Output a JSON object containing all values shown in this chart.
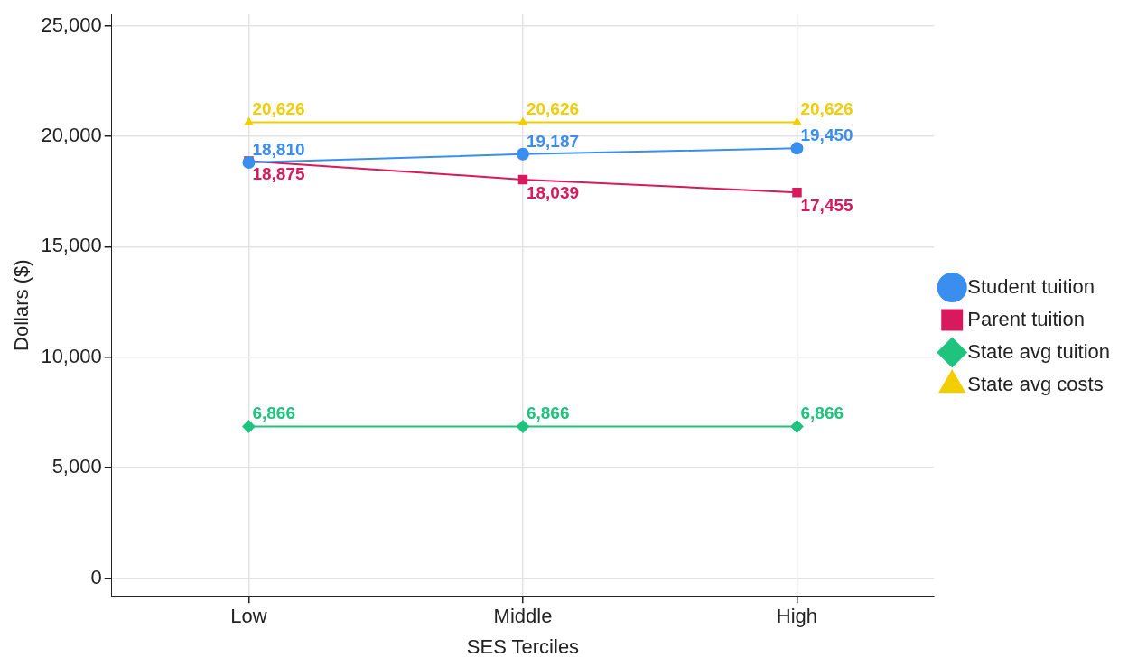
{
  "chart_data": {
    "type": "line",
    "xlabel": "SES Terciles",
    "ylabel": "Dollars ($)",
    "categories": [
      "Low",
      "Middle",
      "High"
    ],
    "series": [
      {
        "name": "Student tuition",
        "color": "#3a8ef0",
        "values": [
          18810,
          19187,
          19450
        ],
        "value_labels": [
          "18,810",
          "19,187",
          "19,450"
        ],
        "marker": "circle"
      },
      {
        "name": "Parent tuition",
        "color": "#d61a5c",
        "values": [
          18875,
          18039,
          17455
        ],
        "value_labels": [
          "18,875",
          "18,039",
          "17,455"
        ],
        "marker": "square"
      },
      {
        "name": "State avg tuition",
        "color": "#1ec47e",
        "values": [
          6866,
          6866,
          6866
        ],
        "value_labels": [
          "6,866",
          "6,866",
          "6,866"
        ],
        "marker": "diamond"
      },
      {
        "name": "State avg costs",
        "color": "#f2cd00",
        "values": [
          20626,
          20626,
          20626
        ],
        "value_labels": [
          "20,626",
          "20,626",
          "20,626"
        ],
        "marker": "triangle"
      }
    ],
    "ylim": [
      -800,
      25500
    ],
    "yticks": [
      {
        "value": 0,
        "label": "0"
      },
      {
        "value": 5000,
        "label": "5,000"
      },
      {
        "value": 10000,
        "label": "10,000"
      },
      {
        "value": 15000,
        "label": "15,000"
      },
      {
        "value": 20000,
        "label": "20,000"
      },
      {
        "value": 25000,
        "label": "25,000"
      }
    ],
    "grid": true,
    "legend": "right",
    "line_style": "solid"
  }
}
